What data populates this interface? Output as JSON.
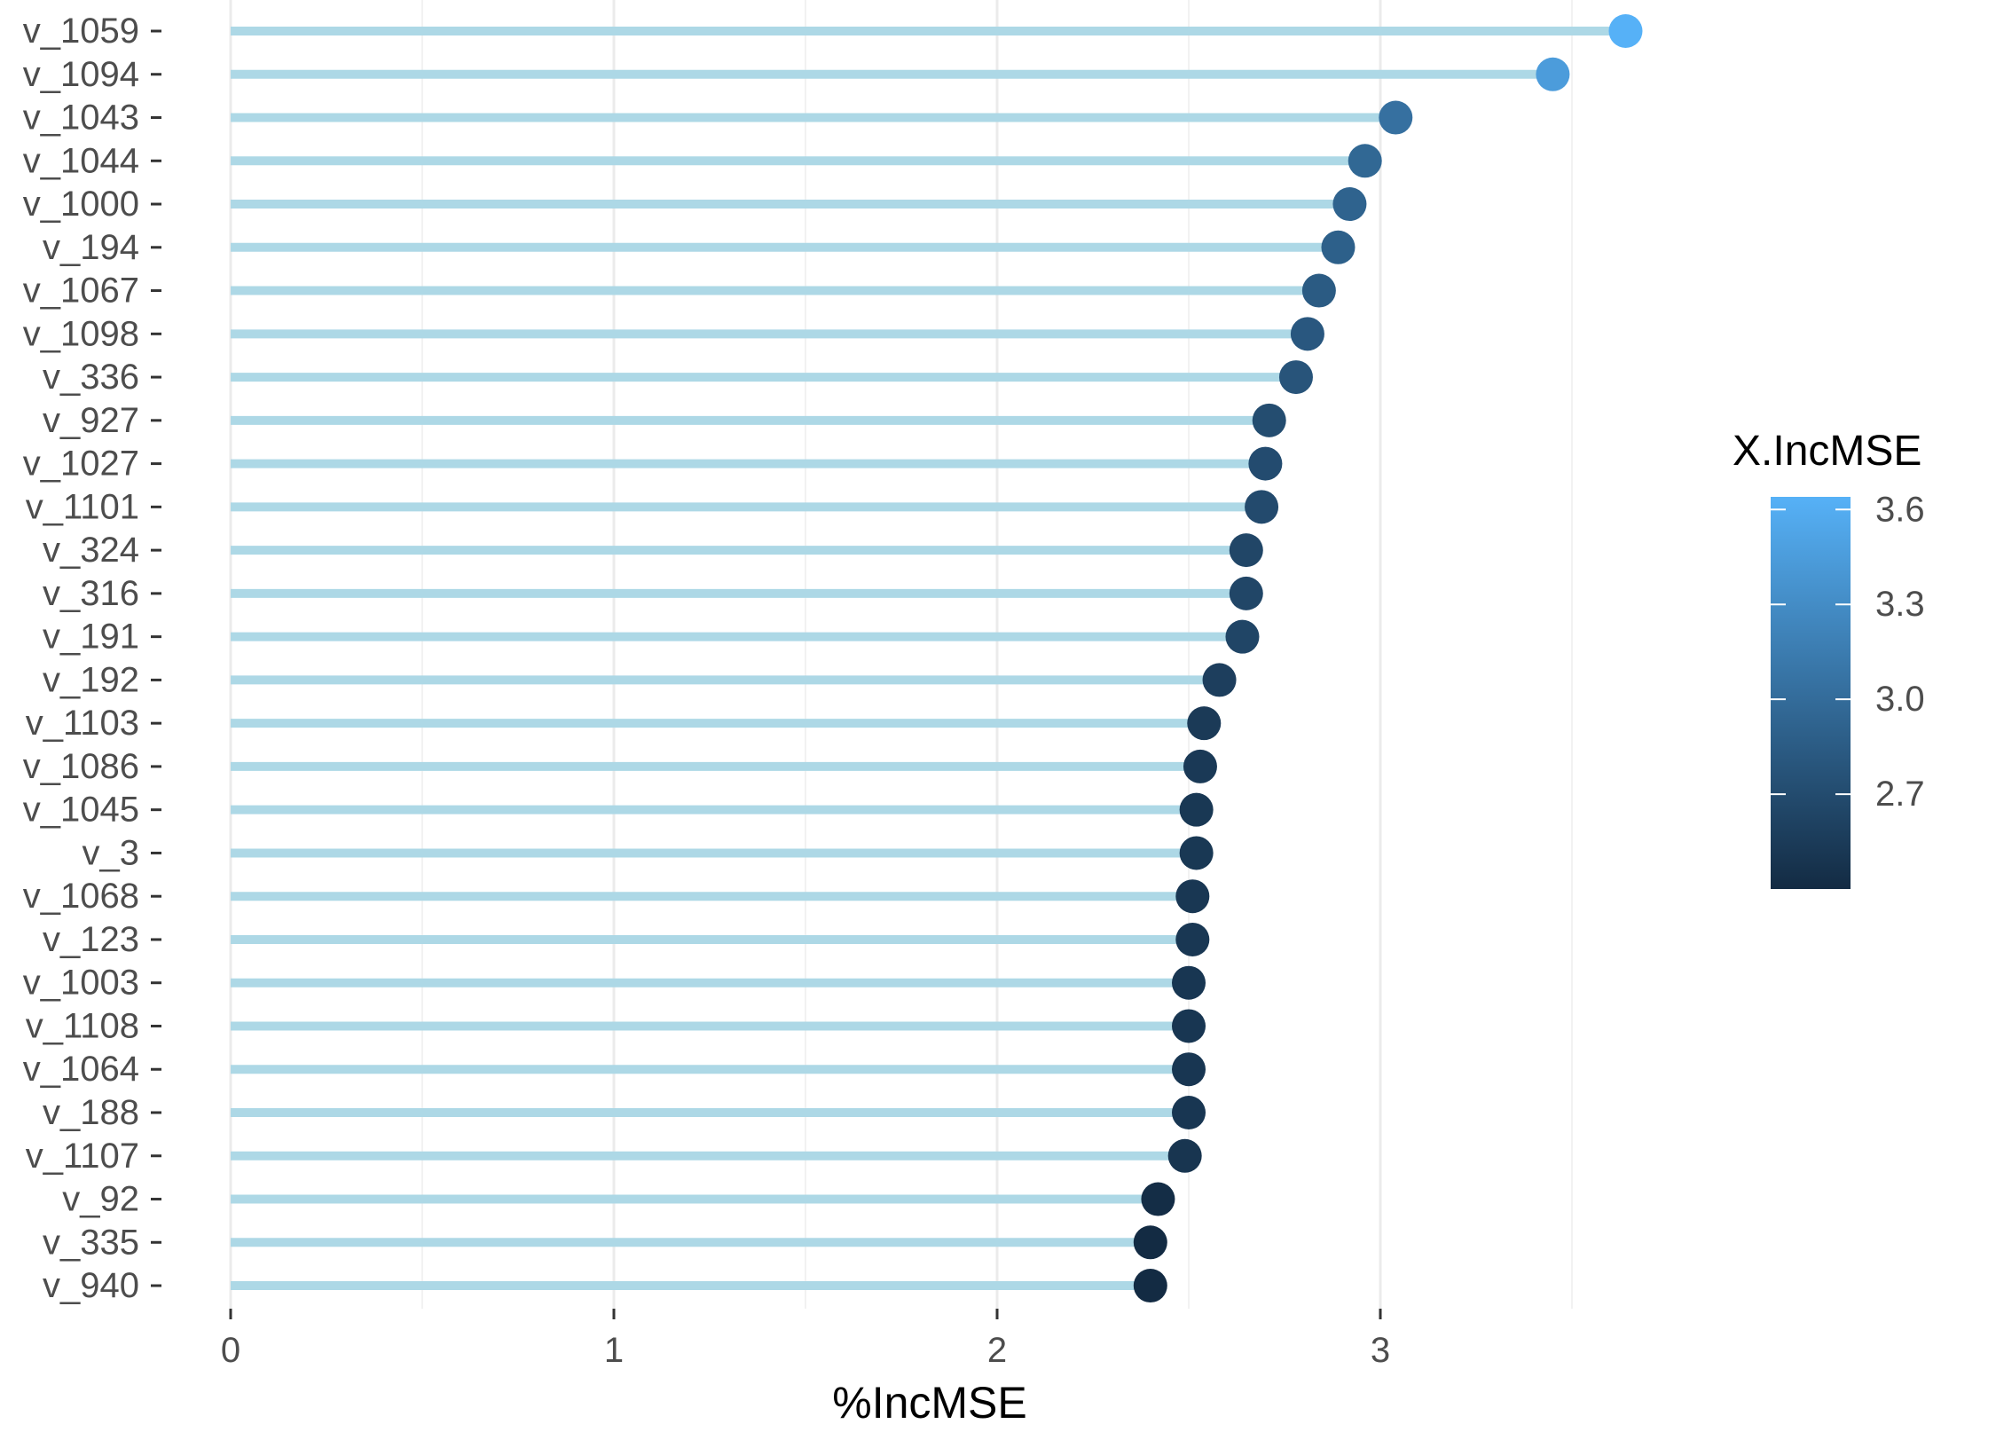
{
  "chart_data": {
    "type": "lollipop",
    "xlabel": "%IncMSE",
    "ylabel": "",
    "xlim": [
      0,
      3.65
    ],
    "x_ticks": [
      "0",
      "1",
      "2",
      "3"
    ],
    "x_tick_values": [
      0,
      1,
      2,
      3
    ],
    "x_minor_gridlines": [
      0.5,
      1.5,
      2.5,
      3.5
    ],
    "grid": true,
    "segment_color": "#add8e6",
    "categories": [
      "v_1059",
      "v_1094",
      "v_1043",
      "v_1044",
      "v_1000",
      "v_194",
      "v_1067",
      "v_1098",
      "v_336",
      "v_927",
      "v_1027",
      "v_1101",
      "v_324",
      "v_316",
      "v_191",
      "v_192",
      "v_1103",
      "v_1086",
      "v_1045",
      "v_3",
      "v_1068",
      "v_123",
      "v_1003",
      "v_1108",
      "v_1064",
      "v_188",
      "v_1107",
      "v_92",
      "v_335",
      "v_940"
    ],
    "values": [
      3.64,
      3.45,
      3.04,
      2.96,
      2.92,
      2.89,
      2.84,
      2.81,
      2.78,
      2.71,
      2.7,
      2.69,
      2.65,
      2.65,
      2.64,
      2.58,
      2.54,
      2.53,
      2.52,
      2.52,
      2.51,
      2.51,
      2.5,
      2.5,
      2.5,
      2.5,
      2.49,
      2.42,
      2.4,
      2.4
    ],
    "legend": {
      "title": "X.IncMSE",
      "position": "right",
      "range": [
        2.4,
        3.64
      ],
      "ticks": [
        "3.6",
        "3.3",
        "3.0",
        "2.7"
      ],
      "tick_values": [
        3.6,
        3.3,
        3.0,
        2.7
      ],
      "color_low": "#132b43",
      "color_high": "#56b1f7"
    }
  }
}
